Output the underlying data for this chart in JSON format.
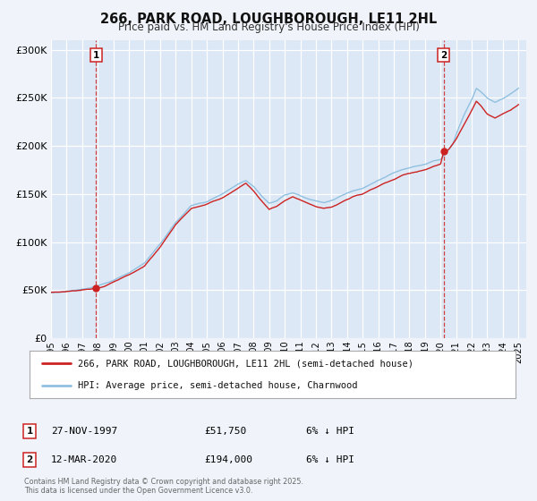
{
  "title_line1": "266, PARK ROAD, LOUGHBOROUGH, LE11 2HL",
  "title_line2": "Price paid vs. HM Land Registry's House Price Index (HPI)",
  "background_color": "#f0f4fa",
  "plot_bg_color": "#dce8f5",
  "grid_color": "#ffffff",
  "hpi_color": "#90c0e0",
  "price_color": "#cc2222",
  "ylim": [
    0,
    310000
  ],
  "yticks": [
    0,
    50000,
    100000,
    150000,
    200000,
    250000,
    300000
  ],
  "ytick_labels": [
    "£0",
    "£50K",
    "£100K",
    "£150K",
    "£200K",
    "£250K",
    "£300K"
  ],
  "legend_label_price": "266, PARK ROAD, LOUGHBOROUGH, LE11 2HL (semi-detached house)",
  "legend_label_hpi": "HPI: Average price, semi-detached house, Charnwood",
  "annotation1_num": "1",
  "annotation1_date": "27-NOV-1997",
  "annotation1_price": "£51,750",
  "annotation1_hpi": "6% ↓ HPI",
  "annotation2_num": "2",
  "annotation2_date": "12-MAR-2020",
  "annotation2_price": "£194,000",
  "annotation2_hpi": "6% ↓ HPI",
  "footer_text": "Contains HM Land Registry data © Crown copyright and database right 2025.\nThis data is licensed under the Open Government Licence v3.0.",
  "sale1_year": 1997.9,
  "sale1_price": 51750,
  "sale2_year": 2020.2,
  "sale2_price": 194000
}
